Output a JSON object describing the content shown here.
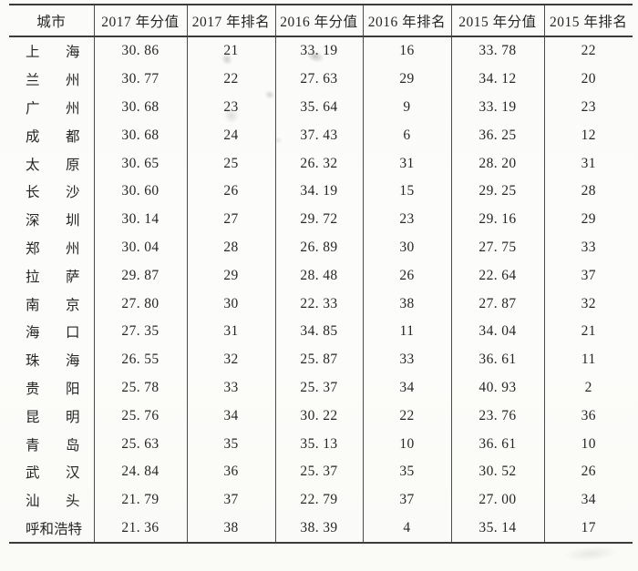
{
  "table": {
    "headers": [
      "城市",
      "2017 年分值",
      "2017 年排名",
      "2016 年分值",
      "2016 年排名",
      "2015 年分值",
      "2015 年排名"
    ],
    "rows": [
      {
        "city": "上海",
        "values": [
          "30. 86",
          "21",
          "33. 19",
          "16",
          "33. 78",
          "22"
        ]
      },
      {
        "city": "兰州",
        "values": [
          "30. 77",
          "22",
          "27. 63",
          "29",
          "34. 12",
          "20"
        ]
      },
      {
        "city": "广州",
        "values": [
          "30. 68",
          "23",
          "35. 64",
          "9",
          "33. 19",
          "23"
        ]
      },
      {
        "city": "成都",
        "values": [
          "30. 68",
          "24",
          "37. 43",
          "6",
          "36. 25",
          "12"
        ]
      },
      {
        "city": "太原",
        "values": [
          "30. 65",
          "25",
          "26. 32",
          "31",
          "28. 20",
          "31"
        ]
      },
      {
        "city": "长沙",
        "values": [
          "30. 60",
          "26",
          "34. 19",
          "15",
          "29. 25",
          "28"
        ]
      },
      {
        "city": "深圳",
        "values": [
          "30. 14",
          "27",
          "29. 72",
          "23",
          "29. 16",
          "29"
        ]
      },
      {
        "city": "郑州",
        "values": [
          "30. 04",
          "28",
          "26. 89",
          "30",
          "27. 75",
          "33"
        ]
      },
      {
        "city": "拉萨",
        "values": [
          "29. 87",
          "29",
          "28. 48",
          "26",
          "22. 64",
          "37"
        ]
      },
      {
        "city": "南京",
        "values": [
          "27. 80",
          "30",
          "22. 33",
          "38",
          "27. 87",
          "32"
        ]
      },
      {
        "city": "海口",
        "values": [
          "27. 35",
          "31",
          "34. 85",
          "11",
          "34. 04",
          "21"
        ]
      },
      {
        "city": "珠海",
        "values": [
          "26. 55",
          "32",
          "25. 87",
          "33",
          "36. 61",
          "11"
        ]
      },
      {
        "city": "贵阳",
        "values": [
          "25. 78",
          "33",
          "25. 37",
          "34",
          "40. 93",
          "2"
        ]
      },
      {
        "city": "昆明",
        "values": [
          "25. 76",
          "34",
          "30. 22",
          "22",
          "23. 76",
          "36"
        ]
      },
      {
        "city": "青岛",
        "values": [
          "25. 63",
          "35",
          "35. 13",
          "10",
          "36. 61",
          "10"
        ]
      },
      {
        "city": "武汉",
        "values": [
          "24. 84",
          "36",
          "25. 37",
          "35",
          "30. 52",
          "26"
        ]
      },
      {
        "city": "汕头",
        "values": [
          "21. 79",
          "37",
          "22. 79",
          "37",
          "27. 00",
          "34"
        ]
      },
      {
        "city": "呼和浩特",
        "values": [
          "21. 36",
          "38",
          "38. 39",
          "4",
          "35. 14",
          "17"
        ]
      }
    ],
    "colors": {
      "rule": "#3b3b3b",
      "inner_rule": "#4c4c4c",
      "text": "#262626",
      "paper": "#fbfbf9"
    }
  }
}
